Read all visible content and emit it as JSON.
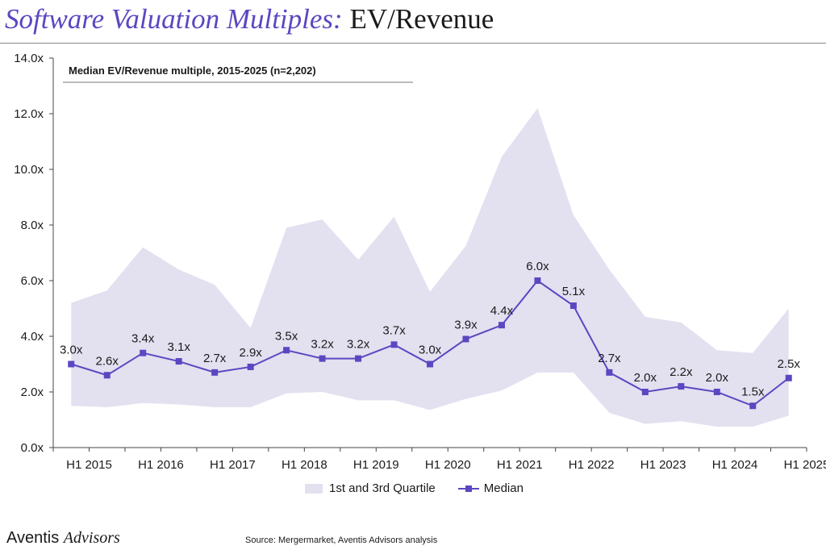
{
  "header": {
    "title_italic": "Software Valuation Multiples:",
    "title_rest": " EV/Revenue"
  },
  "colors": {
    "accent": "#5b47c1",
    "band": "#e3e0f0",
    "text": "#1a1a1a"
  },
  "chart_data": {
    "type": "line",
    "subtitle": "Median EV/Revenue multiple, 2015-2025 (n=2,202)",
    "ylim": [
      0,
      14
    ],
    "y_ticks": [
      0,
      2,
      4,
      6,
      8,
      10,
      12,
      14
    ],
    "y_tick_labels": [
      "0.0x",
      "2.0x",
      "4.0x",
      "6.0x",
      "8.0x",
      "10.0x",
      "12.0x",
      "14.0x"
    ],
    "x_tick_labels": [
      "H1 2015",
      "H1 2016",
      "H1 2017",
      "H1 2018",
      "H1 2019",
      "H1 2020",
      "H1 2021",
      "H1 2022",
      "H1 2023",
      "H1 2024",
      "H1 2025"
    ],
    "periods": [
      "H1 2015",
      "H2 2015",
      "H1 2016",
      "H2 2016",
      "H1 2017",
      "H2 2017",
      "H1 2018",
      "H2 2018",
      "H1 2019",
      "H2 2019",
      "H1 2020",
      "H2 2020",
      "H1 2021",
      "H2 2021",
      "H1 2022",
      "H2 2022",
      "H1 2023",
      "H2 2023",
      "H1 2024",
      "H2 2024",
      "H1 2025"
    ],
    "series": [
      {
        "name": "1st and 3rd Quartile",
        "type": "band",
        "lower": [
          1.5,
          1.45,
          1.6,
          1.55,
          1.45,
          1.45,
          1.95,
          2.0,
          1.7,
          1.7,
          1.35,
          1.75,
          2.05,
          2.7,
          2.7,
          1.25,
          0.85,
          0.95,
          0.75,
          0.75,
          1.15
        ],
        "upper": [
          5.2,
          5.65,
          7.2,
          6.4,
          5.85,
          4.3,
          7.9,
          8.2,
          6.75,
          8.3,
          5.6,
          7.25,
          10.45,
          12.2,
          8.35,
          6.4,
          4.7,
          4.5,
          3.5,
          3.4,
          5.0
        ]
      },
      {
        "name": "Median",
        "type": "line",
        "values": [
          3.0,
          2.6,
          3.4,
          3.1,
          2.7,
          2.9,
          3.5,
          3.2,
          3.2,
          3.7,
          3.0,
          3.9,
          4.4,
          6.0,
          5.1,
          2.7,
          2.0,
          2.2,
          2.0,
          1.5,
          2.5
        ],
        "labels": [
          "3.0x",
          "2.6x",
          "3.4x",
          "3.1x",
          "2.7x",
          "2.9x",
          "3.5x",
          "3.2x",
          "3.2x",
          "3.7x",
          "3.0x",
          "3.9x",
          "4.4x",
          "6.0x",
          "5.1x",
          "2.7x",
          "2.0x",
          "2.2x",
          "2.0x",
          "1.5x",
          "2.5x"
        ]
      }
    ],
    "legend": [
      "1st and 3rd Quartile",
      "Median"
    ]
  },
  "footer": {
    "logo_a": "Aventis",
    "logo_b": "Advisors",
    "source": "Source: Mergermarket, Aventis Advisors analysis"
  }
}
